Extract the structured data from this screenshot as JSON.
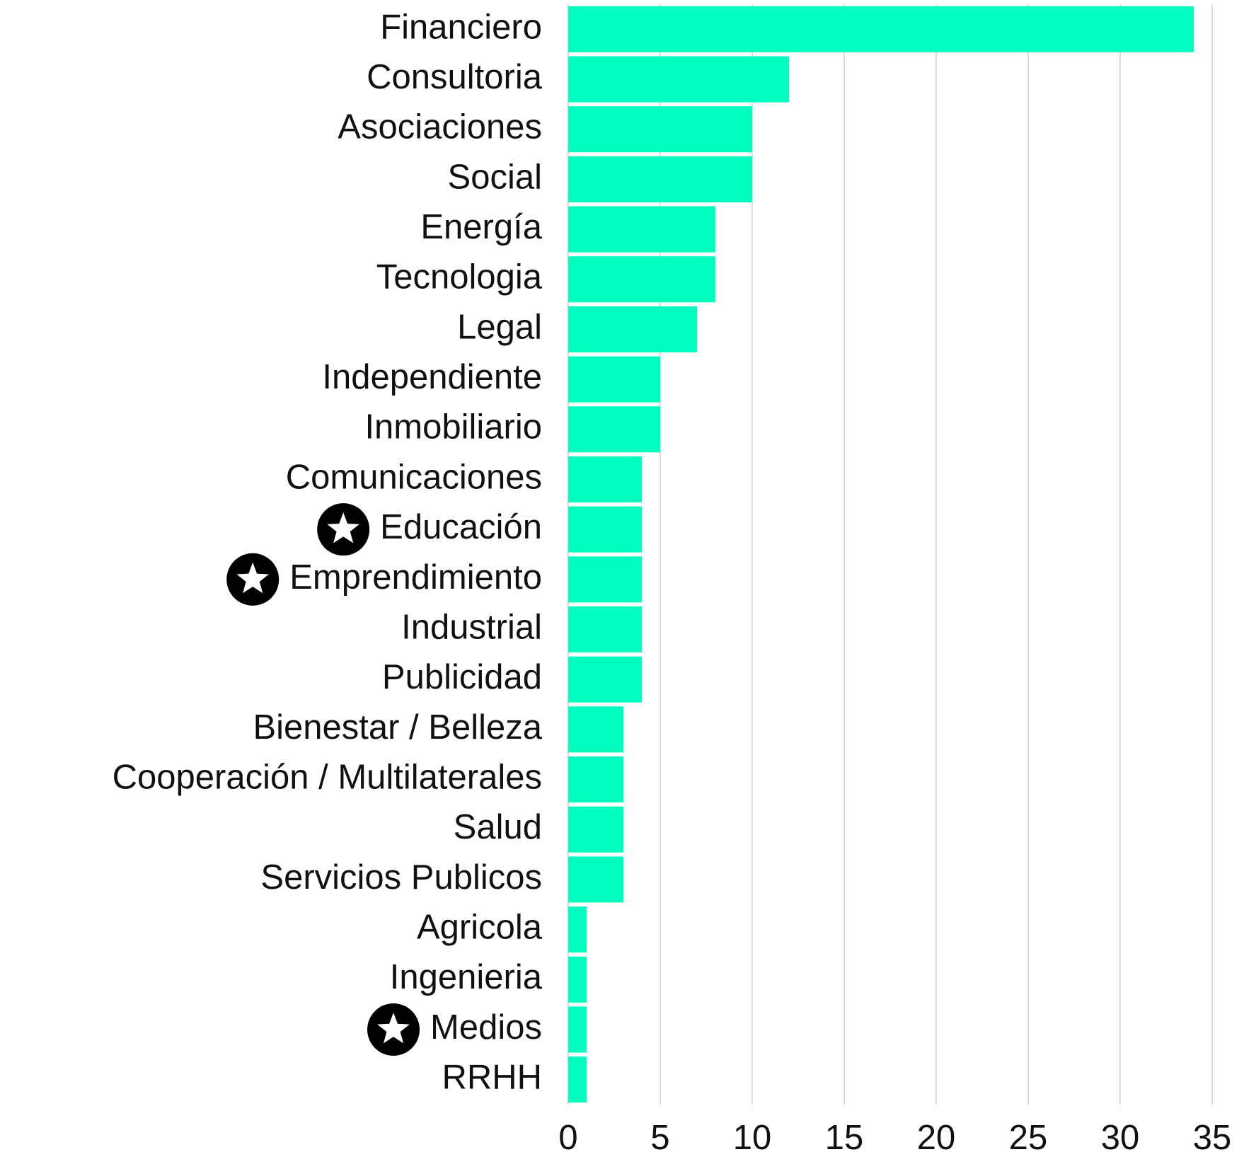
{
  "chart_data": {
    "type": "barh",
    "categories": [
      "Financiero",
      "Consultoria",
      "Asociaciones",
      "Social",
      "Energía",
      "Tecnologia",
      "Legal",
      "Independiente",
      "Inmobiliario",
      "Comunicaciones",
      "Educación",
      "Emprendimiento",
      "Industrial",
      "Publicidad",
      "Bienestar / Belleza",
      "Cooperación / Multilaterales",
      "Salud",
      "Servicios Publicos",
      "Agricola",
      "Ingenieria",
      "Medios",
      "RRHH"
    ],
    "values": [
      34,
      12,
      10,
      10,
      8,
      8,
      7,
      5,
      5,
      4,
      4,
      4,
      4,
      4,
      3,
      3,
      3,
      3,
      1,
      1,
      1,
      1
    ],
    "color": "#00ffbf",
    "starred": [
      10,
      11,
      20
    ],
    "xlim": [
      0,
      35
    ],
    "xticks": [
      0,
      5,
      10,
      15,
      20,
      25,
      30,
      35
    ],
    "grid": true
  }
}
